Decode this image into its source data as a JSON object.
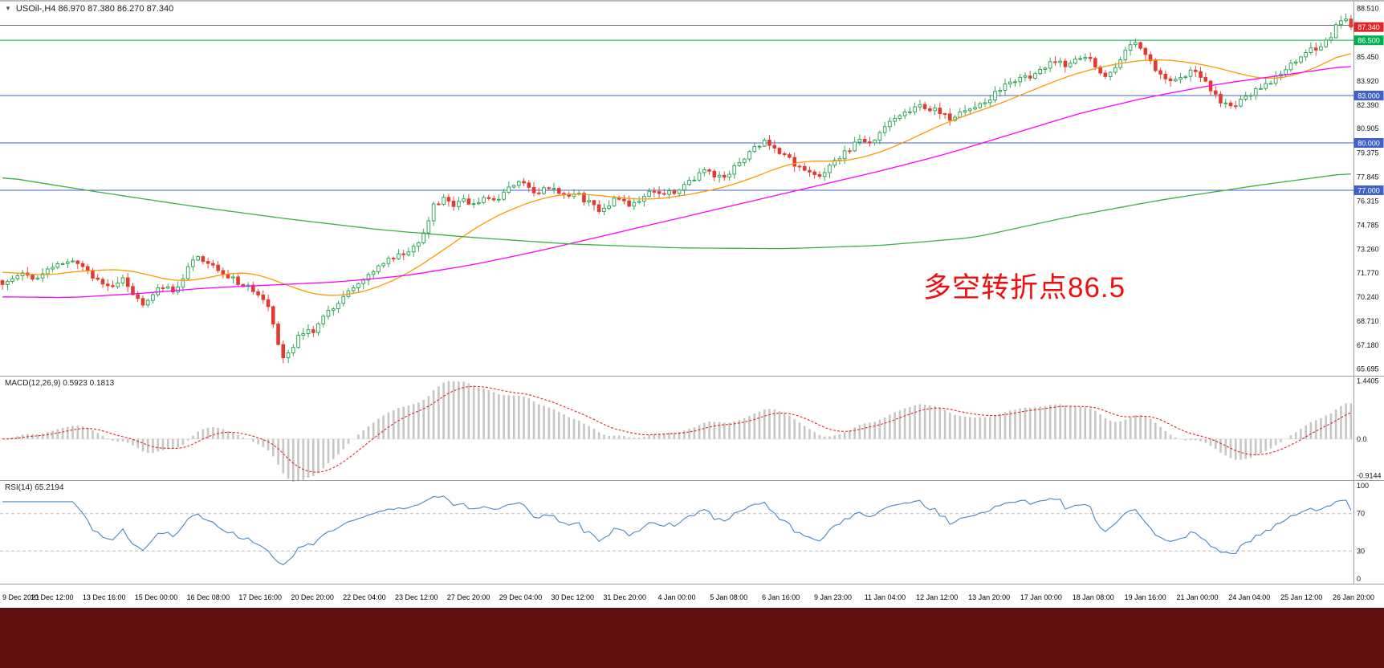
{
  "window": {
    "bg_color": "#ffffff",
    "bottom_bar_color": "#5e0f10"
  },
  "header": {
    "collapse_icon": "▼",
    "symbol_info": "USOil-,H4  86.970 87.380 86.270 87.340"
  },
  "chart_data": [
    {
      "type": "candlestick",
      "title": "USOil-,H4",
      "timeframe": "H4",
      "symbol": "USOil-",
      "ohlc_current": {
        "open": 86.97,
        "high": 87.38,
        "low": 86.27,
        "close": 87.34
      },
      "ylim": [
        65.25,
        88.95
      ],
      "num_candles": 270,
      "up_color": "#1fa14d",
      "down_color": "#e23b2e",
      "y_axis_labels": [
        "88.510",
        "85.450",
        "83.920",
        "82.390",
        "80.905",
        "79.375",
        "77.845",
        "76.315",
        "74.785",
        "73.260",
        "71.770",
        "70.240",
        "68.710",
        "67.180",
        "65.695"
      ],
      "x_labels": [
        "9 Dec 2021",
        "10 Dec 12:00",
        "13 Dec 16:00",
        "15 Dec 00:00",
        "16 Dec 08:00",
        "17 Dec 16:00",
        "20 Dec 20:00",
        "22 Dec 04:00",
        "23 Dec 12:00",
        "27 Dec 20:00",
        "29 Dec 04:00",
        "30 Dec 12:00",
        "31 Dec 20:00",
        "4 Jan 00:00",
        "5 Jan 08:00",
        "6 Jan 16:00",
        "9 Jan 23:00",
        "11 Jan 04:00",
        "12 Jan 12:00",
        "13 Jan 20:00",
        "17 Jan 00:00",
        "18 Jan 08:00",
        "19 Jan 16:00",
        "21 Jan 00:00",
        "24 Jan 04:00",
        "25 Jan 12:00",
        "26 Jan 20:00"
      ],
      "hlines": [
        {
          "price": 87.45,
          "color": "#6e6e6e",
          "tag": null,
          "tag_bg": null
        },
        {
          "price": 87.34,
          "color": null,
          "tag": "87.340",
          "tag_bg": "#e02424"
        },
        {
          "price": 86.5,
          "color": "#00b050",
          "tag": "86.500",
          "tag_bg": "#00b050"
        },
        {
          "price": 83.0,
          "color": "#4062c8",
          "tag": "83.000",
          "tag_bg": "#4062c8"
        },
        {
          "price": 80.0,
          "color": "#4062c8",
          "tag": "80.000",
          "tag_bg": "#4062c8"
        },
        {
          "price": 77.0,
          "color": "#4062c8",
          "tag": "77.000",
          "tag_bg": "#4062c8"
        }
      ],
      "annotation": {
        "text": "多空转折点86.5",
        "color": "#f10e0e"
      },
      "price_path_anchors": [
        [
          0,
          71.0
        ],
        [
          0.008,
          71.6
        ],
        [
          0.016,
          72.0
        ],
        [
          0.024,
          71.4
        ],
        [
          0.032,
          71.8
        ],
        [
          0.04,
          72.2
        ],
        [
          0.048,
          72.6
        ],
        [
          0.056,
          72.4
        ],
        [
          0.064,
          71.8
        ],
        [
          0.072,
          71.2
        ],
        [
          0.08,
          70.8
        ],
        [
          0.088,
          71.5
        ],
        [
          0.096,
          70.6
        ],
        [
          0.104,
          69.9
        ],
        [
          0.112,
          70.5
        ],
        [
          0.12,
          70.9
        ],
        [
          0.128,
          70.6
        ],
        [
          0.136,
          71.8
        ],
        [
          0.142,
          72.9
        ],
        [
          0.15,
          72.6
        ],
        [
          0.158,
          72.2
        ],
        [
          0.166,
          71.6
        ],
        [
          0.174,
          71.2
        ],
        [
          0.182,
          70.9
        ],
        [
          0.192,
          70.4
        ],
        [
          0.198,
          69.3
        ],
        [
          0.204,
          67.2
        ],
        [
          0.209,
          66.4
        ],
        [
          0.214,
          67.0
        ],
        [
          0.22,
          67.8
        ],
        [
          0.226,
          68.3
        ],
        [
          0.231,
          68.1
        ],
        [
          0.238,
          68.9
        ],
        [
          0.246,
          69.6
        ],
        [
          0.254,
          70.3
        ],
        [
          0.262,
          70.9
        ],
        [
          0.269,
          71.3
        ],
        [
          0.277,
          72.0
        ],
        [
          0.285,
          72.5
        ],
        [
          0.293,
          72.9
        ],
        [
          0.3,
          73.1
        ],
        [
          0.308,
          73.6
        ],
        [
          0.314,
          74.8
        ],
        [
          0.32,
          76.1
        ],
        [
          0.327,
          76.4
        ],
        [
          0.335,
          76.0
        ],
        [
          0.342,
          76.3
        ],
        [
          0.35,
          76.2
        ],
        [
          0.358,
          76.6
        ],
        [
          0.366,
          76.4
        ],
        [
          0.374,
          77.0
        ],
        [
          0.381,
          77.5
        ],
        [
          0.389,
          77.2
        ],
        [
          0.397,
          76.9
        ],
        [
          0.404,
          77.3
        ],
        [
          0.412,
          76.8
        ],
        [
          0.419,
          76.5
        ],
        [
          0.427,
          76.7
        ],
        [
          0.435,
          76.2
        ],
        [
          0.442,
          75.8
        ],
        [
          0.45,
          76.2
        ],
        [
          0.458,
          76.6
        ],
        [
          0.465,
          76.1
        ],
        [
          0.473,
          76.5
        ],
        [
          0.481,
          76.8
        ],
        [
          0.488,
          76.6
        ],
        [
          0.496,
          76.9
        ],
        [
          0.504,
          77.2
        ],
        [
          0.512,
          77.7
        ],
        [
          0.519,
          78.3
        ],
        [
          0.527,
          78.0
        ],
        [
          0.535,
          77.7
        ],
        [
          0.542,
          78.3
        ],
        [
          0.55,
          79.1
        ],
        [
          0.558,
          79.7
        ],
        [
          0.566,
          80.1
        ],
        [
          0.573,
          79.6
        ],
        [
          0.581,
          79.1
        ],
        [
          0.588,
          78.6
        ],
        [
          0.596,
          78.1
        ],
        [
          0.604,
          77.9
        ],
        [
          0.612,
          78.4
        ],
        [
          0.619,
          79.0
        ],
        [
          0.627,
          79.6
        ],
        [
          0.635,
          80.1
        ],
        [
          0.642,
          80.0
        ],
        [
          0.65,
          80.5
        ],
        [
          0.658,
          81.2
        ],
        [
          0.665,
          81.8
        ],
        [
          0.673,
          82.1
        ],
        [
          0.681,
          82.4
        ],
        [
          0.688,
          82.2
        ],
        [
          0.696,
          81.8
        ],
        [
          0.704,
          81.5
        ],
        [
          0.712,
          82.0
        ],
        [
          0.719,
          82.3
        ],
        [
          0.727,
          82.5
        ],
        [
          0.735,
          83.0
        ],
        [
          0.742,
          83.5
        ],
        [
          0.75,
          83.9
        ],
        [
          0.758,
          84.1
        ],
        [
          0.765,
          84.4
        ],
        [
          0.773,
          84.8
        ],
        [
          0.781,
          85.3
        ],
        [
          0.788,
          85.0
        ],
        [
          0.796,
          85.3
        ],
        [
          0.804,
          85.6
        ],
        [
          0.811,
          84.8
        ],
        [
          0.818,
          84.2
        ],
        [
          0.825,
          84.9
        ],
        [
          0.832,
          85.7
        ],
        [
          0.839,
          86.3
        ],
        [
          0.846,
          85.6
        ],
        [
          0.853,
          84.9
        ],
        [
          0.86,
          84.3
        ],
        [
          0.868,
          84.0
        ],
        [
          0.875,
          84.3
        ],
        [
          0.883,
          84.5
        ],
        [
          0.89,
          83.9
        ],
        [
          0.898,
          83.3
        ],
        [
          0.905,
          82.5
        ],
        [
          0.912,
          82.1
        ],
        [
          0.919,
          82.7
        ],
        [
          0.926,
          83.2
        ],
        [
          0.933,
          83.5
        ],
        [
          0.941,
          83.9
        ],
        [
          0.949,
          84.4
        ],
        [
          0.956,
          85.0
        ],
        [
          0.963,
          85.5
        ],
        [
          0.971,
          85.9
        ],
        [
          0.978,
          86.2
        ],
        [
          0.985,
          86.8
        ],
        [
          0.991,
          87.6
        ],
        [
          0.996,
          87.9
        ],
        [
          1,
          87.34
        ]
      ],
      "moving_averages": [
        {
          "name": "ma-fast",
          "color": "#ff9800",
          "anchors": [
            [
              0,
              71.85
            ],
            [
              0.03,
              71.6
            ],
            [
              0.06,
              71.9
            ],
            [
              0.09,
              72.0
            ],
            [
              0.11,
              71.6
            ],
            [
              0.13,
              71.2
            ],
            [
              0.15,
              71.4
            ],
            [
              0.17,
              71.8
            ],
            [
              0.19,
              71.7
            ],
            [
              0.21,
              71.0
            ],
            [
              0.235,
              70.3
            ],
            [
              0.26,
              70.4
            ],
            [
              0.28,
              70.9
            ],
            [
              0.3,
              71.7
            ],
            [
              0.32,
              72.8
            ],
            [
              0.34,
              74.0
            ],
            [
              0.36,
              75.1
            ],
            [
              0.38,
              75.9
            ],
            [
              0.4,
              76.5
            ],
            [
              0.42,
              76.8
            ],
            [
              0.44,
              76.7
            ],
            [
              0.46,
              76.5
            ],
            [
              0.48,
              76.4
            ],
            [
              0.5,
              76.6
            ],
            [
              0.52,
              76.9
            ],
            [
              0.54,
              77.3
            ],
            [
              0.56,
              77.9
            ],
            [
              0.58,
              78.6
            ],
            [
              0.6,
              78.9
            ],
            [
              0.62,
              78.8
            ],
            [
              0.64,
              79.1
            ],
            [
              0.66,
              79.7
            ],
            [
              0.68,
              80.5
            ],
            [
              0.7,
              81.3
            ],
            [
              0.72,
              81.9
            ],
            [
              0.74,
              82.5
            ],
            [
              0.76,
              83.2
            ],
            [
              0.78,
              83.9
            ],
            [
              0.8,
              84.5
            ],
            [
              0.82,
              84.9
            ],
            [
              0.84,
              85.2
            ],
            [
              0.86,
              85.3
            ],
            [
              0.88,
              85.1
            ],
            [
              0.9,
              84.8
            ],
            [
              0.92,
              84.3
            ],
            [
              0.94,
              84.0
            ],
            [
              0.96,
              84.3
            ],
            [
              0.98,
              85.0
            ],
            [
              1,
              85.9
            ]
          ]
        },
        {
          "name": "ma-mid",
          "color": "#ff00ff",
          "anchors": [
            [
              0,
              70.25
            ],
            [
              0.05,
              70.2
            ],
            [
              0.1,
              70.45
            ],
            [
              0.15,
              70.8
            ],
            [
              0.2,
              71.0
            ],
            [
              0.25,
              71.2
            ],
            [
              0.3,
              71.6
            ],
            [
              0.35,
              72.3
            ],
            [
              0.4,
              73.2
            ],
            [
              0.45,
              74.2
            ],
            [
              0.5,
              75.2
            ],
            [
              0.55,
              76.2
            ],
            [
              0.6,
              77.2
            ],
            [
              0.65,
              78.2
            ],
            [
              0.7,
              79.3
            ],
            [
              0.75,
              80.6
            ],
            [
              0.8,
              81.9
            ],
            [
              0.85,
              82.9
            ],
            [
              0.9,
              83.7
            ],
            [
              0.95,
              84.3
            ],
            [
              1,
              84.9
            ]
          ]
        },
        {
          "name": "ma-slow",
          "color": "#3cb043",
          "anchors": [
            [
              0,
              77.85
            ],
            [
              0.07,
              76.9
            ],
            [
              0.14,
              76.0
            ],
            [
              0.21,
              75.2
            ],
            [
              0.28,
              74.5
            ],
            [
              0.35,
              74.0
            ],
            [
              0.42,
              73.6
            ],
            [
              0.5,
              73.35
            ],
            [
              0.58,
              73.3
            ],
            [
              0.65,
              73.5
            ],
            [
              0.72,
              74.0
            ],
            [
              0.79,
              75.3
            ],
            [
              0.86,
              76.4
            ],
            [
              0.93,
              77.3
            ],
            [
              1,
              78.1
            ]
          ]
        }
      ]
    },
    {
      "type": "macd",
      "label": "MACD(12,26,9) 0.5923 0.1813",
      "params": [
        12,
        26,
        9
      ],
      "macd_value": 0.5923,
      "signal_value": 0.1813,
      "ylim": [
        -1.02,
        1.55
      ],
      "y_axis_labels": [
        "1.4405",
        "0.0",
        "-0.9144"
      ],
      "histogram_color": "#c6c6c6",
      "signal_color": "#e02828"
    },
    {
      "type": "rsi",
      "label": "RSI(14) 65.2194",
      "period": 14,
      "current": 65.2194,
      "levels": [
        70,
        30
      ],
      "ylim": [
        -5,
        105
      ],
      "y_axis_labels": [
        "100",
        "70",
        "30",
        "0"
      ],
      "line_color": "#4a86c2"
    }
  ]
}
